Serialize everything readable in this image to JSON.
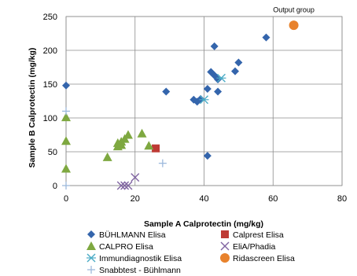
{
  "chart_data": {
    "type": "scatter",
    "xlabel": "Sample A Calprotectin (mg/kg)",
    "ylabel": "Sample B Calprotectin (mg/kg)",
    "xlim": [
      0,
      80
    ],
    "ylim": [
      0,
      250
    ],
    "xticks": [
      0,
      20,
      40,
      60,
      80
    ],
    "yticks": [
      0,
      50,
      100,
      150,
      200,
      250
    ],
    "grid": "vertical and horizontal major gridlines",
    "legend_position": "bottom",
    "annotations": [
      {
        "text": "Output group",
        "x": 66,
        "y": 260
      }
    ],
    "series": [
      {
        "name": "BÜHLMANN Elisa",
        "marker": "diamond",
        "color": "#3465AC",
        "points": [
          [
            0,
            148
          ],
          [
            29,
            139
          ],
          [
            37,
            127
          ],
          [
            38,
            124
          ],
          [
            39,
            128
          ],
          [
            41,
            143
          ],
          [
            42,
            168
          ],
          [
            43,
            206
          ],
          [
            43,
            163
          ],
          [
            44,
            157
          ],
          [
            44,
            139
          ],
          [
            49,
            169
          ],
          [
            50,
            182
          ],
          [
            58,
            219
          ],
          [
            41,
            44
          ]
        ]
      },
      {
        "name": "Calprest Elisa",
        "marker": "square",
        "color": "#BE3A34",
        "points": [
          [
            26,
            55
          ]
        ]
      },
      {
        "name": "CALPRO Elisa",
        "marker": "triangle",
        "color": "#7EA840",
        "points": [
          [
            0,
            101
          ],
          [
            0,
            66
          ],
          [
            0,
            25
          ],
          [
            12,
            42
          ],
          [
            15,
            58
          ],
          [
            15,
            63
          ],
          [
            16,
            60
          ],
          [
            16,
            65
          ],
          [
            17,
            69
          ],
          [
            18,
            75
          ],
          [
            22,
            77
          ],
          [
            24,
            59
          ]
        ]
      },
      {
        "name": "EliA/Phadia",
        "marker": "x",
        "color": "#8064A2",
        "points": [
          [
            16,
            0
          ],
          [
            17,
            0
          ],
          [
            18,
            0
          ],
          [
            20,
            12
          ]
        ]
      },
      {
        "name": "Immundiagnostik Elisa",
        "marker": "asterisk",
        "color": "#4BACC6",
        "points": [
          [
            40,
            127
          ],
          [
            45,
            159
          ]
        ]
      },
      {
        "name": "Ridascreen Elisa",
        "marker": "circle",
        "color": "#E8822C",
        "points": [
          [
            66,
            237
          ]
        ]
      },
      {
        "name": "Snabbtest - Bühlmann",
        "marker": "plus",
        "color": "#9DB9DC",
        "points": [
          [
            0,
            110
          ],
          [
            0,
            0
          ],
          [
            28,
            33
          ]
        ]
      }
    ]
  }
}
